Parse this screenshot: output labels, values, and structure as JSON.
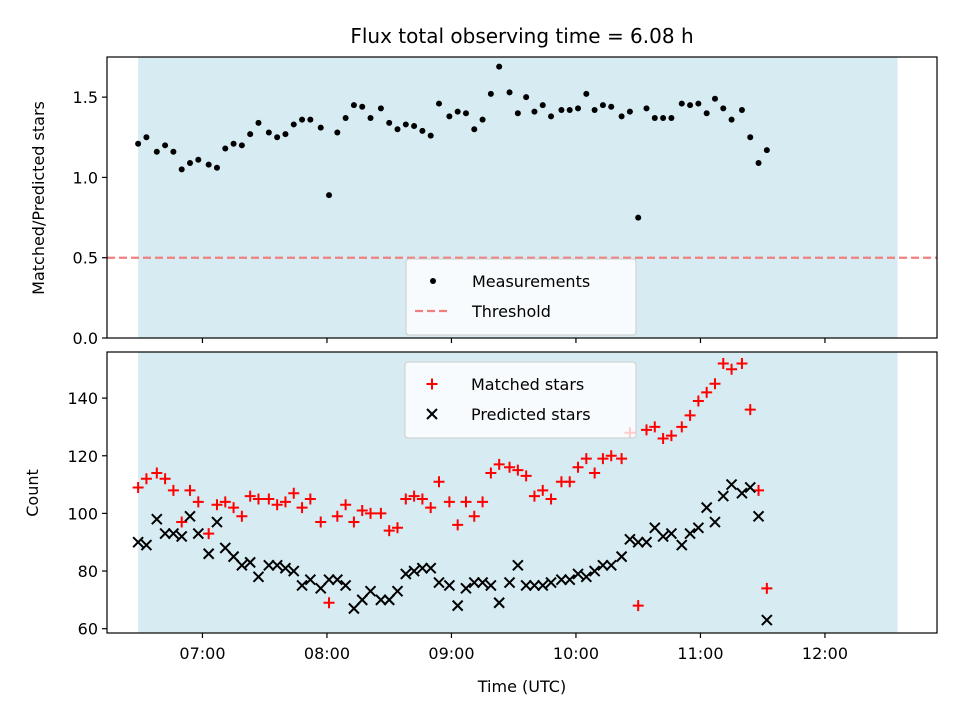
{
  "chart_data": [
    {
      "type": "scatter",
      "title": "Flux total observing time = 6.08 h",
      "xlabel": "",
      "ylabel": "Matched/Predicted stars",
      "ylim": [
        0,
        1.75
      ],
      "yticks": [
        "0.0",
        "0.5",
        "1.0",
        "1.5"
      ],
      "ytick_values": [
        0,
        0.5,
        1.0,
        1.5
      ],
      "xlim": [
        "06:14",
        "12:54"
      ],
      "shaded_span": [
        "06:29",
        "12:35"
      ],
      "shade_color": "#add8e6",
      "grid": false,
      "legend_position": "lower center",
      "threshold": {
        "name": "Threshold",
        "value": 0.5,
        "color": "#f08080",
        "style": "dashed"
      },
      "series": [
        {
          "name": "Measurements",
          "color": "#000000",
          "marker": "dot",
          "points": [
            [
              "06:29",
              1.21
            ],
            [
              "06:33",
              1.25
            ],
            [
              "06:38",
              1.16
            ],
            [
              "06:42",
              1.2
            ],
            [
              "06:46",
              1.16
            ],
            [
              "06:50",
              1.05
            ],
            [
              "06:54",
              1.09
            ],
            [
              "06:58",
              1.11
            ],
            [
              "07:03",
              1.08
            ],
            [
              "07:07",
              1.06
            ],
            [
              "07:11",
              1.18
            ],
            [
              "07:15",
              1.21
            ],
            [
              "07:19",
              1.2
            ],
            [
              "07:23",
              1.27
            ],
            [
              "07:27",
              1.34
            ],
            [
              "07:32",
              1.28
            ],
            [
              "07:36",
              1.25
            ],
            [
              "07:40",
              1.27
            ],
            [
              "07:44",
              1.33
            ],
            [
              "07:48",
              1.36
            ],
            [
              "07:52",
              1.36
            ],
            [
              "07:57",
              1.31
            ],
            [
              "08:01",
              0.89
            ],
            [
              "08:05",
              1.28
            ],
            [
              "08:09",
              1.37
            ],
            [
              "08:13",
              1.45
            ],
            [
              "08:17",
              1.44
            ],
            [
              "08:21",
              1.37
            ],
            [
              "08:26",
              1.43
            ],
            [
              "08:30",
              1.34
            ],
            [
              "08:34",
              1.3
            ],
            [
              "08:38",
              1.33
            ],
            [
              "08:42",
              1.32
            ],
            [
              "08:46",
              1.29
            ],
            [
              "08:50",
              1.26
            ],
            [
              "08:54",
              1.46
            ],
            [
              "08:59",
              1.38
            ],
            [
              "09:03",
              1.41
            ],
            [
              "09:07",
              1.4
            ],
            [
              "09:11",
              1.3
            ],
            [
              "09:15",
              1.36
            ],
            [
              "09:19",
              1.52
            ],
            [
              "09:23",
              1.69
            ],
            [
              "09:28",
              1.53
            ],
            [
              "09:32",
              1.4
            ],
            [
              "09:36",
              1.5
            ],
            [
              "09:40",
              1.41
            ],
            [
              "09:44",
              1.45
            ],
            [
              "09:48",
              1.38
            ],
            [
              "09:53",
              1.42
            ],
            [
              "09:57",
              1.42
            ],
            [
              "10:01",
              1.43
            ],
            [
              "10:05",
              1.52
            ],
            [
              "10:09",
              1.42
            ],
            [
              "10:13",
              1.45
            ],
            [
              "10:17",
              1.44
            ],
            [
              "10:22",
              1.38
            ],
            [
              "10:26",
              1.41
            ],
            [
              "10:30",
              0.75
            ],
            [
              "10:34",
              1.43
            ],
            [
              "10:38",
              1.37
            ],
            [
              "10:42",
              1.37
            ],
            [
              "10:46",
              1.37
            ],
            [
              "10:51",
              1.46
            ],
            [
              "10:55",
              1.45
            ],
            [
              "10:59",
              1.46
            ],
            [
              "11:03",
              1.4
            ],
            [
              "11:07",
              1.49
            ],
            [
              "11:11",
              1.43
            ],
            [
              "11:15",
              1.36
            ],
            [
              "11:20",
              1.42
            ],
            [
              "11:24",
              1.25
            ],
            [
              "11:28",
              1.09
            ],
            [
              "11:32",
              1.17
            ]
          ]
        }
      ]
    },
    {
      "type": "scatter",
      "title": "",
      "xlabel": "Time (UTC)",
      "ylabel": "Count",
      "ylim": [
        58.5,
        156
      ],
      "yticks": [
        "60",
        "80",
        "100",
        "120",
        "140"
      ],
      "ytick_values": [
        60,
        80,
        100,
        120,
        140
      ],
      "xlim": [
        "06:14",
        "12:54"
      ],
      "xticks": [
        "07:00",
        "08:00",
        "09:00",
        "10:00",
        "11:00",
        "12:00"
      ],
      "shaded_span": [
        "06:29",
        "12:35"
      ],
      "shade_color": "#add8e6",
      "grid": false,
      "legend_position": "upper center",
      "series": [
        {
          "name": "Matched stars",
          "color": "#ff0000",
          "marker": "plus",
          "points": [
            [
              "06:29",
              109
            ],
            [
              "06:33",
              112
            ],
            [
              "06:38",
              114
            ],
            [
              "06:42",
              112
            ],
            [
              "06:46",
              108
            ],
            [
              "06:50",
              97
            ],
            [
              "06:54",
              108
            ],
            [
              "06:58",
              104
            ],
            [
              "07:03",
              93
            ],
            [
              "07:07",
              103
            ],
            [
              "07:11",
              104
            ],
            [
              "07:15",
              102
            ],
            [
              "07:19",
              99
            ],
            [
              "07:23",
              106
            ],
            [
              "07:27",
              105
            ],
            [
              "07:32",
              105
            ],
            [
              "07:36",
              103
            ],
            [
              "07:40",
              104
            ],
            [
              "07:44",
              107
            ],
            [
              "07:48",
              102
            ],
            [
              "07:52",
              105
            ],
            [
              "07:57",
              97
            ],
            [
              "08:01",
              69
            ],
            [
              "08:05",
              99
            ],
            [
              "08:09",
              103
            ],
            [
              "08:13",
              97
            ],
            [
              "08:17",
              101
            ],
            [
              "08:21",
              100
            ],
            [
              "08:26",
              100
            ],
            [
              "08:30",
              94
            ],
            [
              "08:34",
              95
            ],
            [
              "08:38",
              105
            ],
            [
              "08:42",
              106
            ],
            [
              "08:46",
              105
            ],
            [
              "08:50",
              102
            ],
            [
              "08:54",
              111
            ],
            [
              "08:59",
              104
            ],
            [
              "09:03",
              96
            ],
            [
              "09:07",
              104
            ],
            [
              "09:11",
              99
            ],
            [
              "09:15",
              104
            ],
            [
              "09:19",
              114
            ],
            [
              "09:23",
              117
            ],
            [
              "09:28",
              116
            ],
            [
              "09:32",
              115
            ],
            [
              "09:36",
              113
            ],
            [
              "09:40",
              106
            ],
            [
              "09:44",
              108
            ],
            [
              "09:48",
              105
            ],
            [
              "09:53",
              111
            ],
            [
              "09:57",
              111
            ],
            [
              "10:01",
              116
            ],
            [
              "10:05",
              119
            ],
            [
              "10:09",
              114
            ],
            [
              "10:13",
              119
            ],
            [
              "10:17",
              120
            ],
            [
              "10:22",
              119
            ],
            [
              "10:26",
              128
            ],
            [
              "10:30",
              68
            ],
            [
              "10:34",
              129
            ],
            [
              "10:38",
              130
            ],
            [
              "10:42",
              126
            ],
            [
              "10:46",
              127
            ],
            [
              "10:51",
              130
            ],
            [
              "10:55",
              134
            ],
            [
              "10:59",
              139
            ],
            [
              "11:03",
              142
            ],
            [
              "11:07",
              145
            ],
            [
              "11:11",
              152
            ],
            [
              "11:15",
              150
            ],
            [
              "11:20",
              152
            ],
            [
              "11:24",
              136
            ],
            [
              "11:28",
              108
            ],
            [
              "11:32",
              74
            ]
          ]
        },
        {
          "name": "Predicted stars",
          "color": "#000000",
          "marker": "x",
          "points": [
            [
              "06:29",
              90
            ],
            [
              "06:33",
              89
            ],
            [
              "06:38",
              98
            ],
            [
              "06:42",
              93
            ],
            [
              "06:46",
              93
            ],
            [
              "06:50",
              92
            ],
            [
              "06:54",
              99
            ],
            [
              "06:58",
              93
            ],
            [
              "07:03",
              86
            ],
            [
              "07:07",
              97
            ],
            [
              "07:11",
              88
            ],
            [
              "07:15",
              85
            ],
            [
              "07:19",
              82
            ],
            [
              "07:23",
              83
            ],
            [
              "07:27",
              78
            ],
            [
              "07:32",
              82
            ],
            [
              "07:36",
              82
            ],
            [
              "07:40",
              81
            ],
            [
              "07:44",
              80
            ],
            [
              "07:48",
              75
            ],
            [
              "07:52",
              77
            ],
            [
              "07:57",
              74
            ],
            [
              "08:01",
              77
            ],
            [
              "08:05",
              77
            ],
            [
              "08:09",
              75
            ],
            [
              "08:13",
              67
            ],
            [
              "08:17",
              70
            ],
            [
              "08:21",
              73
            ],
            [
              "08:26",
              70
            ],
            [
              "08:30",
              70
            ],
            [
              "08:34",
              73
            ],
            [
              "08:38",
              79
            ],
            [
              "08:42",
              80
            ],
            [
              "08:46",
              81
            ],
            [
              "08:50",
              81
            ],
            [
              "08:54",
              76
            ],
            [
              "08:59",
              75
            ],
            [
              "09:03",
              68
            ],
            [
              "09:07",
              74
            ],
            [
              "09:11",
              76
            ],
            [
              "09:15",
              76
            ],
            [
              "09:19",
              75
            ],
            [
              "09:23",
              69
            ],
            [
              "09:28",
              76
            ],
            [
              "09:32",
              82
            ],
            [
              "09:36",
              75
            ],
            [
              "09:40",
              75
            ],
            [
              "09:44",
              75
            ],
            [
              "09:48",
              76
            ],
            [
              "09:53",
              77
            ],
            [
              "09:57",
              77
            ],
            [
              "10:01",
              79
            ],
            [
              "10:05",
              78
            ],
            [
              "10:09",
              80
            ],
            [
              "10:13",
              82
            ],
            [
              "10:17",
              82
            ],
            [
              "10:22",
              85
            ],
            [
              "10:26",
              91
            ],
            [
              "10:30",
              90
            ],
            [
              "10:34",
              90
            ],
            [
              "10:38",
              95
            ],
            [
              "10:42",
              92
            ],
            [
              "10:46",
              93
            ],
            [
              "10:51",
              89
            ],
            [
              "10:55",
              93
            ],
            [
              "10:59",
              95
            ],
            [
              "11:03",
              102
            ],
            [
              "11:07",
              97
            ],
            [
              "11:11",
              106
            ],
            [
              "11:15",
              110
            ],
            [
              "11:20",
              107
            ],
            [
              "11:24",
              109
            ],
            [
              "11:28",
              99
            ],
            [
              "11:32",
              63
            ]
          ]
        }
      ]
    }
  ]
}
